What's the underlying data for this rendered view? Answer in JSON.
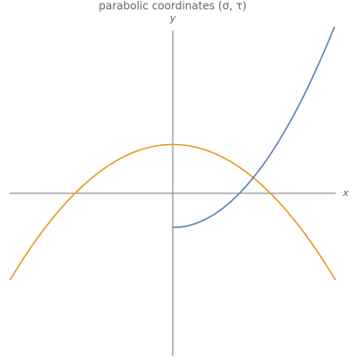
{
  "chart_data": {
    "type": "line",
    "title": "parabolic coordinates (σ, τ)",
    "x_label": "x",
    "y_label": "y",
    "xlim": [
      -1,
      1
    ],
    "ylim": [
      -1,
      1
    ],
    "x": [
      -1,
      -0.95,
      -0.9,
      -0.85,
      -0.8,
      -0.75,
      -0.7,
      -0.65,
      -0.6,
      -0.55,
      -0.5,
      -0.45,
      -0.4,
      -0.35,
      -0.3,
      -0.25,
      -0.2,
      -0.15,
      -0.1,
      -0.05,
      0,
      0.05,
      0.1,
      0.15,
      0.2,
      0.25,
      0.3,
      0.35,
      0.4,
      0.45,
      0.5,
      0.55,
      0.6,
      0.65,
      0.7,
      0.75,
      0.8,
      0.85,
      0.9,
      0.95,
      1
    ],
    "series": [
      {
        "color": "#e19c24",
        "values": [
          -0.533,
          -0.452,
          -0.375,
          -0.302,
          -0.233,
          -0.169,
          -0.108,
          -0.052,
          0.0,
          0.048,
          0.092,
          0.131,
          0.167,
          0.198,
          0.225,
          0.248,
          0.267,
          0.281,
          0.292,
          0.298,
          0.3,
          0.298,
          0.292,
          0.281,
          0.267,
          0.248,
          0.225,
          0.198,
          0.167,
          0.131,
          0.092,
          0.048,
          0.0,
          -0.052,
          -0.108,
          -0.169,
          -0.233,
          -0.302,
          -0.375,
          -0.452,
          -0.533
        ]
      },
      {
        "color": "#5e81b5",
        "values": [
          null,
          null,
          null,
          null,
          null,
          null,
          null,
          null,
          null,
          null,
          null,
          null,
          null,
          null,
          null,
          null,
          null,
          null,
          null,
          null,
          -0.21,
          -0.207,
          -0.198,
          -0.182,
          -0.16,
          -0.132,
          -0.098,
          -0.057,
          -0.01,
          0.043,
          0.103,
          0.168,
          0.24,
          0.318,
          0.403,
          0.493,
          0.59,
          0.693,
          0.803,
          0.918,
          1.04
        ]
      }
    ]
  }
}
